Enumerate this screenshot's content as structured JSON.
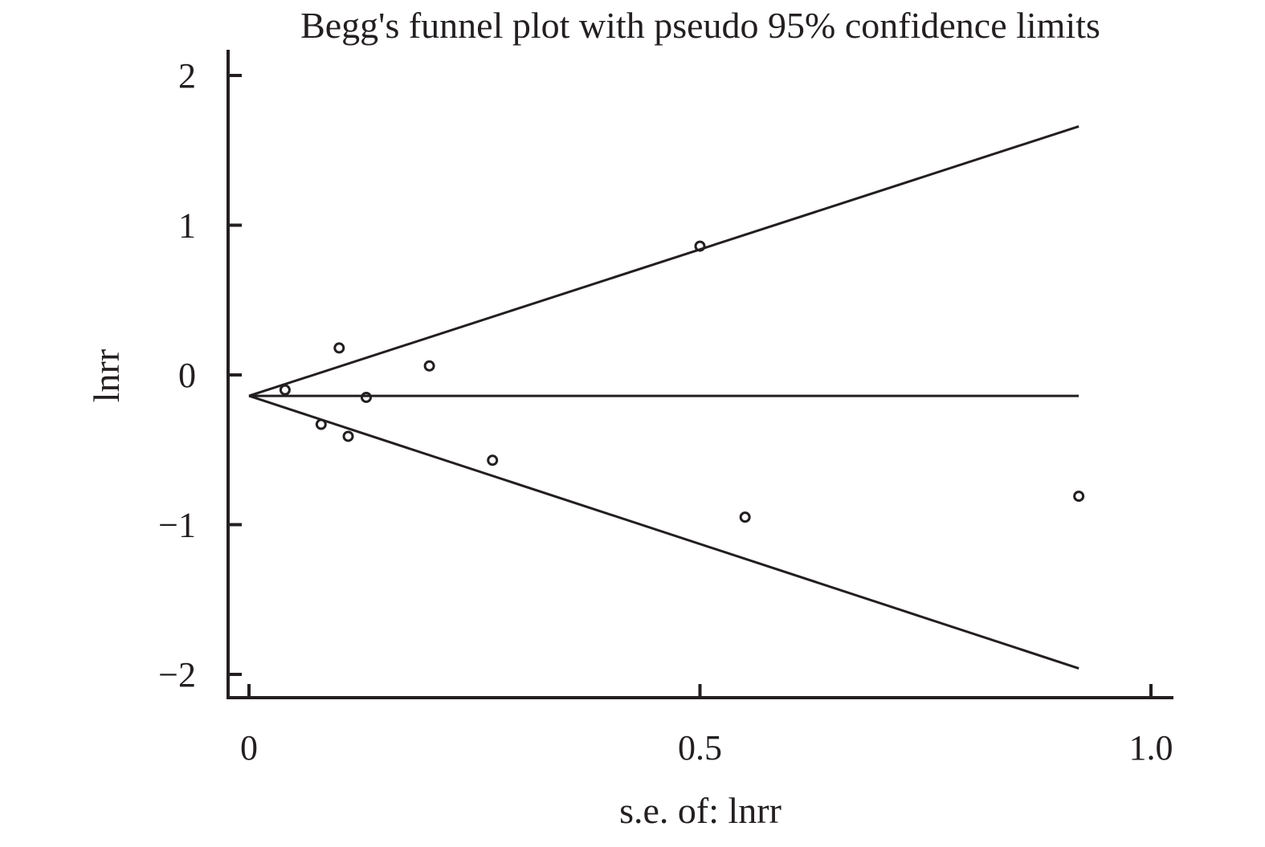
{
  "chart_data": {
    "type": "scatter",
    "title": "Begg's funnel plot with pseudo 95% confidence limits",
    "xlabel": "s.e. of: lnrr",
    "ylabel": "lnrr",
    "xlim": [
      -0.025,
      1.025
    ],
    "ylim": [
      -2.15,
      2.15
    ],
    "x_ticks": [
      0,
      0.5,
      1.0
    ],
    "x_tick_labels": [
      "0",
      "0.5",
      "1.0"
    ],
    "y_ticks": [
      2,
      1,
      0,
      -1,
      -2
    ],
    "y_tick_labels": [
      "2",
      "1",
      "0",
      "−1",
      "−2"
    ],
    "grid": false,
    "legend": "none",
    "pooled_estimate": -0.14,
    "reference_lines": [
      {
        "name": "pooled",
        "x": [
          0,
          0.92
        ],
        "y": [
          -0.14,
          -0.14
        ]
      },
      {
        "name": "upper-limit",
        "x": [
          0,
          0.92
        ],
        "y": [
          -0.14,
          1.66
        ]
      },
      {
        "name": "lower-limit",
        "x": [
          0,
          0.92
        ],
        "y": [
          -0.14,
          -1.96
        ]
      }
    ],
    "points": [
      {
        "x": 0.04,
        "y": -0.1
      },
      {
        "x": 0.08,
        "y": -0.33
      },
      {
        "x": 0.1,
        "y": 0.18
      },
      {
        "x": 0.11,
        "y": -0.41
      },
      {
        "x": 0.13,
        "y": -0.15
      },
      {
        "x": 0.2,
        "y": 0.06
      },
      {
        "x": 0.27,
        "y": -0.57
      },
      {
        "x": 0.5,
        "y": 0.86
      },
      {
        "x": 0.55,
        "y": -0.95
      },
      {
        "x": 0.92,
        "y": -0.81
      }
    ],
    "colors": {
      "ink": "#231f20",
      "background": "#ffffff"
    }
  }
}
